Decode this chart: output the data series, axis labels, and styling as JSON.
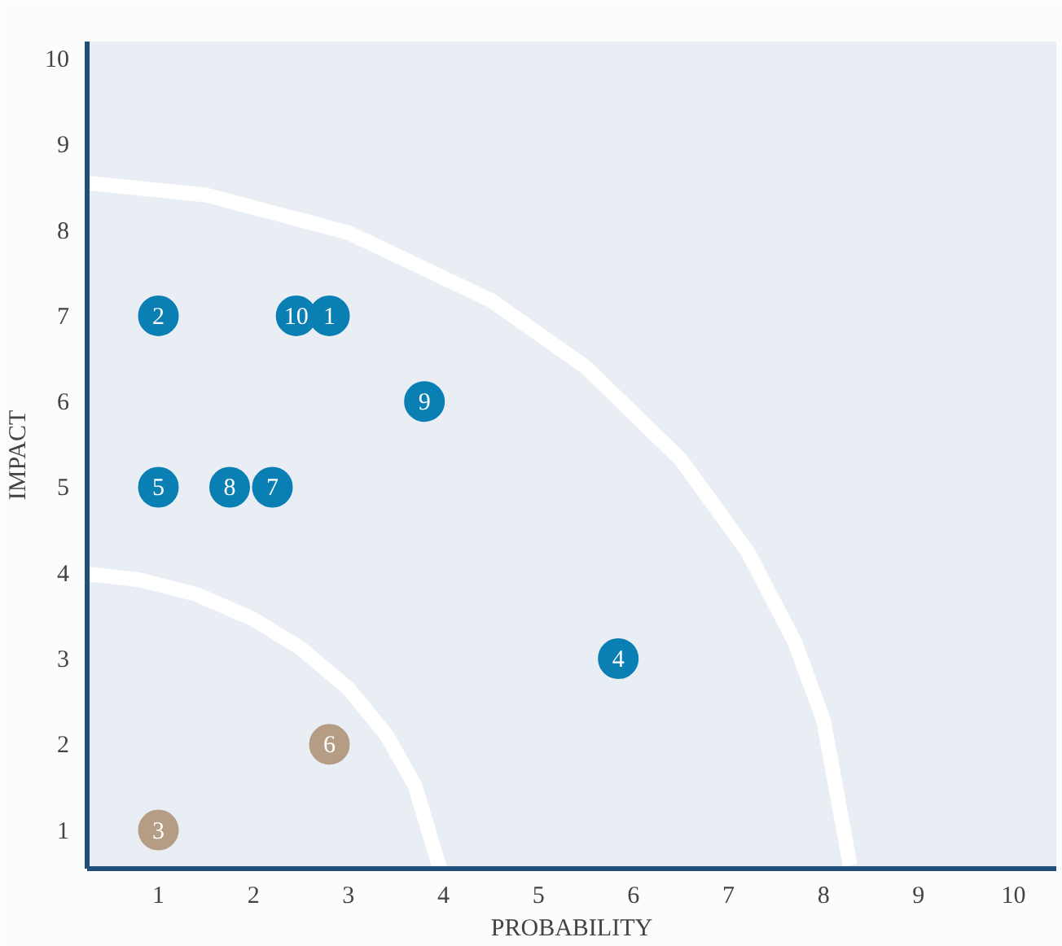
{
  "chart_data": {
    "type": "scatter",
    "xlabel": "PROBABILITY",
    "ylabel": "IMPACT",
    "xlim": [
      0.25,
      10.45
    ],
    "ylim": [
      0.55,
      10.2
    ],
    "xticks": [
      1,
      2,
      3,
      4,
      5,
      6,
      7,
      8,
      9,
      10
    ],
    "yticks": [
      1,
      2,
      3,
      4,
      5,
      6,
      7,
      8,
      9,
      10
    ],
    "marker": "circle",
    "series": [
      {
        "type": "line",
        "marker": "none",
        "color": "#ffffff",
        "x": [
          0.25,
          0.8,
          1.4,
          2,
          2.5,
          3,
          3.4,
          3.7,
          3.96
        ],
        "values": [
          3.99,
          3.92,
          3.75,
          3.46,
          3.12,
          2.65,
          2.11,
          1.52,
          0.56
        ]
      },
      {
        "type": "line",
        "marker": "none",
        "color": "#ffffff",
        "x": [
          0.25,
          1.5,
          3,
          4.5,
          5.5,
          6.5,
          7.2,
          7.7,
          8.0,
          8.28
        ],
        "values": [
          8.55,
          8.41,
          7.97,
          7.18,
          6.4,
          5.32,
          4.25,
          3.19,
          2.28,
          0.59
        ]
      },
      {
        "color": "#0a7fb3",
        "x": [
          2.8,
          1,
          5.84,
          1,
          2.2,
          1.75,
          3.8,
          2.45
        ],
        "values": [
          7,
          7,
          3,
          5,
          5,
          5,
          6,
          7
        ]
      },
      {
        "color": "#b59c84",
        "x": [
          1,
          2.8
        ],
        "values": [
          1,
          2
        ]
      }
    ],
    "annotations": [
      {
        "text": "1",
        "x": 2.8,
        "y": 7
      },
      {
        "text": "2",
        "x": 1,
        "y": 7
      },
      {
        "text": "3",
        "x": 1,
        "y": 1
      },
      {
        "text": "4",
        "x": 5.84,
        "y": 3
      },
      {
        "text": "5",
        "x": 1,
        "y": 5
      },
      {
        "text": "6",
        "x": 2.8,
        "y": 2
      },
      {
        "text": "7",
        "x": 2.2,
        "y": 5
      },
      {
        "text": "8",
        "x": 1.75,
        "y": 5
      },
      {
        "text": "9",
        "x": 3.8,
        "y": 6
      },
      {
        "text": "10",
        "x": 2.45,
        "y": 7
      }
    ]
  }
}
